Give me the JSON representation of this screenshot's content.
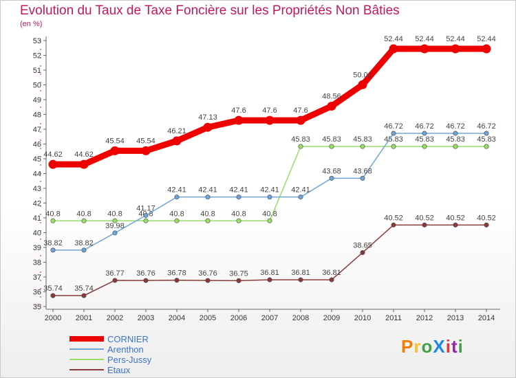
{
  "title": "Evolution du Taux de Taxe Foncière sur les Propriétés Non Bâties",
  "unit_label": "(en %)",
  "logo": {
    "text": "ProXiti",
    "letters": [
      {
        "ch": "P",
        "color": "#f57c00"
      },
      {
        "ch": "r",
        "color": "#fbc02d"
      },
      {
        "ch": "o",
        "color": "#43a047"
      },
      {
        "ch": "X",
        "color": "#1e88e5"
      },
      {
        "ch": "i",
        "color": "#e53935"
      },
      {
        "ch": "t",
        "color": "#8e24aa"
      },
      {
        "ch": "i",
        "color": "#43a047"
      }
    ]
  },
  "chart_data": {
    "type": "line",
    "title": "Evolution du Taux de Taxe Foncière sur les Propriétés Non Bâties",
    "ylabel": "(en %)",
    "xlabel": "",
    "x": [
      "2000",
      "2001",
      "2002",
      "2003",
      "2004",
      "2005",
      "2006",
      "2007",
      "2008",
      "2009",
      "2010",
      "2011",
      "2012",
      "2013",
      "2014"
    ],
    "ylim": [
      35,
      53
    ],
    "yticks": [
      35,
      36,
      37,
      38,
      39,
      40,
      41,
      42,
      43,
      44,
      45,
      46,
      47,
      48,
      49,
      50,
      51,
      52,
      53
    ],
    "grid": false,
    "legend_position": "bottom-left",
    "series": [
      {
        "name": "CORNIER",
        "color": "#ee0000",
        "width": 9,
        "values": [
          44.62,
          44.62,
          45.54,
          45.54,
          46.21,
          47.13,
          47.6,
          47.6,
          47.6,
          48.56,
          50.01,
          52.44,
          52.44,
          52.44,
          52.44
        ],
        "labels": [
          "44.62",
          "44.62",
          "45.54",
          "45.54",
          "46.21",
          "47.13",
          "47.6",
          "47.6",
          "47.6",
          "48.56",
          "50.01",
          "52.44",
          "52.44",
          "52.44",
          "52.44"
        ]
      },
      {
        "name": "Arenthon",
        "color": "#6fa5d6",
        "width": 1.5,
        "values": [
          38.82,
          38.82,
          39.98,
          41.17,
          42.41,
          42.41,
          42.41,
          42.41,
          42.41,
          43.68,
          43.68,
          46.72,
          46.72,
          46.72,
          46.72
        ],
        "labels": [
          "38.82",
          "38.82",
          "39.98",
          "41.17",
          "42.41",
          "42.41",
          "42.41",
          "42.41",
          "42.41",
          "43.68",
          "43.68",
          "46.72",
          "46.72",
          "46.72",
          "46.72"
        ]
      },
      {
        "name": "Pers-Jussy",
        "color": "#99dd66",
        "width": 1.5,
        "values": [
          40.8,
          40.8,
          40.8,
          40.8,
          40.8,
          40.8,
          40.8,
          40.8,
          45.83,
          45.83,
          45.83,
          45.83,
          45.83,
          45.83,
          45.83
        ],
        "labels": [
          "40.8",
          "40.8",
          "40.8",
          "40.8",
          "40.8",
          "40.8",
          "40.8",
          "40.8",
          "45.83",
          "45.83",
          "45.83",
          "45.83",
          "45.83",
          "45.83",
          "45.83"
        ]
      },
      {
        "name": "Etaux",
        "color": "#8b3a3a",
        "width": 1.5,
        "values": [
          35.74,
          35.74,
          36.77,
          36.76,
          36.78,
          36.76,
          36.75,
          36.81,
          36.81,
          36.81,
          38.65,
          40.52,
          40.52,
          40.52,
          40.52
        ],
        "labels": [
          "35.74",
          "35.74",
          "36.77",
          "36.76",
          "36.78",
          "36.76",
          "36.75",
          "36.81",
          "36.81",
          "36.81",
          "38.65",
          "40.52",
          "40.52",
          "40.52",
          "40.52"
        ]
      }
    ]
  }
}
